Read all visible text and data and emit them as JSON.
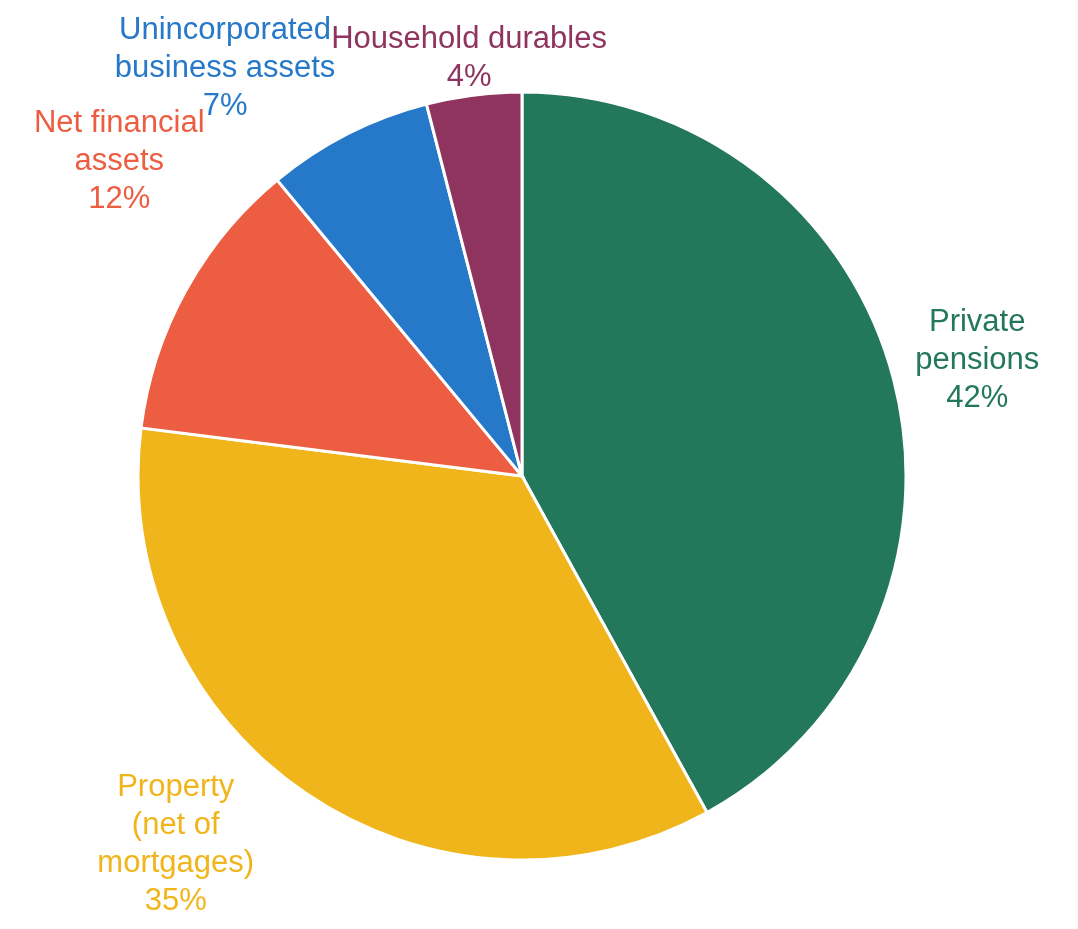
{
  "chart_data": {
    "type": "pie",
    "categories": [
      "Private\npensions",
      "Property\n(net of\nmortgages)",
      "Net financial\nassets",
      "Unincorporated\nbusiness assets",
      "Household durables"
    ],
    "values": [
      42,
      35,
      12,
      7,
      4
    ],
    "colors": [
      "#23775a",
      "#f0b51a",
      "#ec5d42",
      "#2678c8",
      "#8e345e"
    ],
    "value_labels": [
      "42%",
      "35%",
      "12%",
      "7%",
      "4%"
    ]
  }
}
